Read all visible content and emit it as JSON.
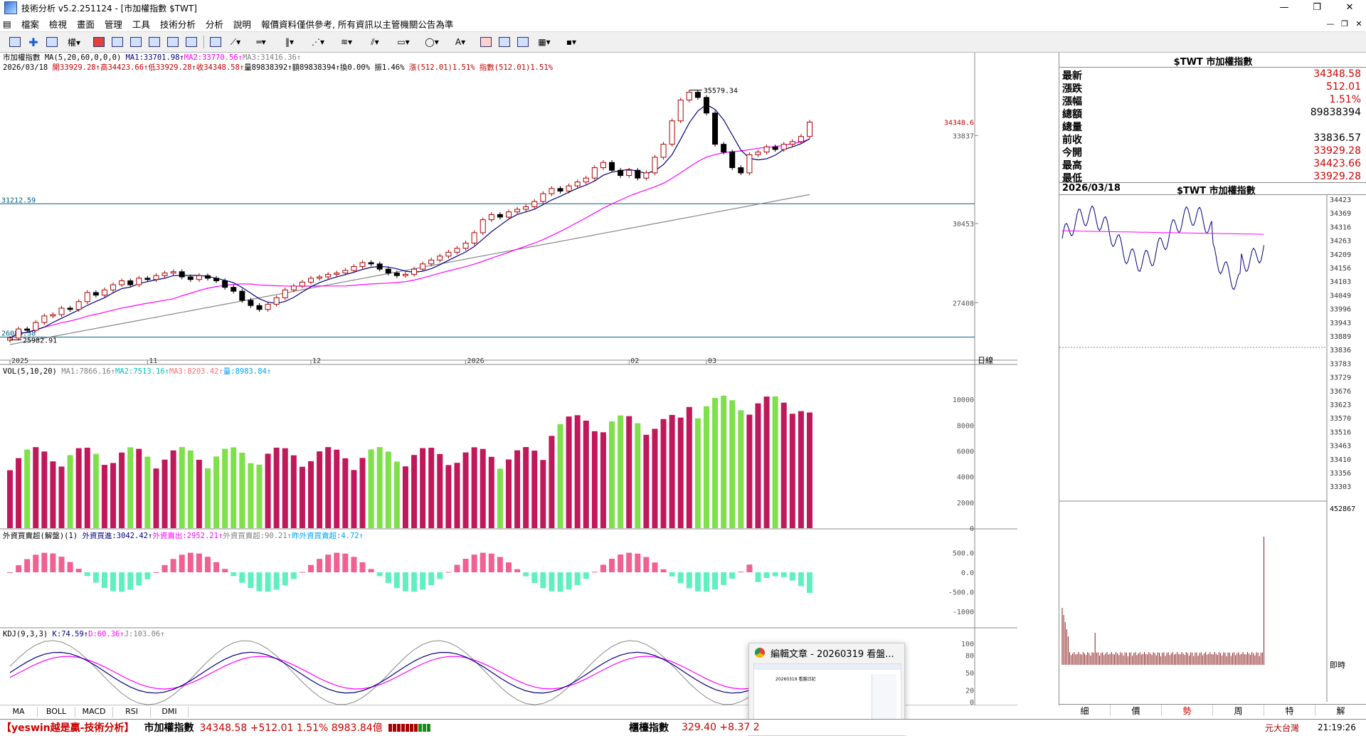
{
  "window": {
    "title": "技術分析 v5.2.251124 - [市加權指數 $TWT]",
    "buttons": [
      "—",
      "❐",
      "✕"
    ]
  },
  "menu": [
    "檔案",
    "檢視",
    "畫面",
    "管理",
    "工具",
    "技術分析",
    "分析",
    "說明",
    "報價資料僅供參考, 所有資訊以主管機關公告為準"
  ],
  "mdi_buttons": [
    "—",
    "❐",
    "✕"
  ],
  "main_chart": {
    "title_line": "市加權指數 MA(5,20,60,0,0,0) MA1:33701.98↑MA2:33770.56↑MA3:31416.36↑",
    "title_parts": [
      {
        "text": "市加權指數 MA(5,20,60,0,0,0) ",
        "color": "#000000"
      },
      {
        "text": "MA1:33701.98↑",
        "color": "#000080"
      },
      {
        "text": "MA2:33770.56↑",
        "color": "#ff00ff"
      },
      {
        "text": "MA3:31416.36↑",
        "color": "#808080"
      }
    ],
    "info_line_parts": [
      {
        "text": "2026/03/18 ",
        "color": "#000000"
      },
      {
        "text": "開33929.28↑高34423.66↑低33929.28↑收34348.58↑",
        "color": "#c00000"
      },
      {
        "text": "量89838392↑額89838394↑換0.00%  振1.46% ",
        "color": "#000000"
      },
      {
        "text": "漲(512.01)1.51% 指數(512.01)1.51%",
        "color": "#c00000"
      }
    ],
    "hlines": [
      {
        "label": "31212.59",
        "value": 31212.59
      },
      {
        "label": "26084.38",
        "value": 26084.38
      }
    ],
    "y_ticks": [
      "33837",
      "30453",
      "27408"
    ],
    "last_price_label": "34348.6",
    "peak_label": "35579.34",
    "low_label": "25982.91",
    "x_labels": [
      "2025",
      "11",
      "12",
      "2026",
      "02",
      "03"
    ],
    "x_axis_unit": "日線"
  },
  "volume_chart": {
    "title_parts": [
      {
        "text": "VOL(5,10,20) ",
        "color": "#000000"
      },
      {
        "text": "MA1:7866.16↑",
        "color": "#808080"
      },
      {
        "text": "MA2:7513.16↑",
        "color": "#00c0c0"
      },
      {
        "text": "MA3:8203.42↑",
        "color": "#ff7070"
      },
      {
        "text": "量:8983.84↑",
        "color": "#00a0ff"
      }
    ],
    "y_ticks": [
      "10000",
      "8000",
      "6000",
      "4000",
      "2000",
      "0"
    ]
  },
  "foreign_chart": {
    "title_parts": [
      {
        "text": "外資買賣超(解盤)(1) ",
        "color": "#000000"
      },
      {
        "text": "外資買進:3042.42↑",
        "color": "#000080"
      },
      {
        "text": "外資賣出:2952.21↑",
        "color": "#ff00ff"
      },
      {
        "text": "外資買賣超:90.21↑",
        "color": "#808080"
      },
      {
        "text": "昨外資買賣超:4.72↑",
        "color": "#00a0ff"
      }
    ],
    "y_ticks": [
      "500.0",
      "0.0",
      "-500.0",
      "-1000"
    ]
  },
  "kdj_chart": {
    "title_parts": [
      {
        "text": "KDJ(9,3,3) ",
        "color": "#000000"
      },
      {
        "text": "K:74.59↑",
        "color": "#000080"
      },
      {
        "text": "D:60.36↑",
        "color": "#ff00ff"
      },
      {
        "text": "J:103.06↑",
        "color": "#808080"
      }
    ],
    "y_ticks": [
      "100",
      "80",
      "50",
      "20",
      "0"
    ]
  },
  "bottom_tabs": [
    "MA",
    "BOLL",
    "MACD",
    "RSI",
    "DMI"
  ],
  "quote_panel": {
    "header": "$TWT 市加權指數",
    "rows": [
      {
        "label": "最新",
        "value": "34348.58",
        "red": true
      },
      {
        "label": "漲跌",
        "value": "512.01",
        "red": true
      },
      {
        "label": "漲幅",
        "value": "1.51%",
        "red": true
      },
      {
        "label": "總額",
        "value": "89838394",
        "red": false
      },
      {
        "label": "總量",
        "value": "",
        "red": false
      },
      {
        "label": "前收",
        "value": "33836.57",
        "red": false
      },
      {
        "label": "今開",
        "value": "33929.28",
        "red": true
      },
      {
        "label": "最高",
        "value": "34423.66",
        "red": true
      },
      {
        "label": "最低",
        "value": "33929.28",
        "red": true
      }
    ],
    "sub_date": "2026/03/18",
    "sub_symbol": "$TWT 市加權指數",
    "intraday_ticks": [
      "34423",
      "34369",
      "34316",
      "34263",
      "34209",
      "34156",
      "34103",
      "34049",
      "33996",
      "33943",
      "33889",
      "33836",
      "33783",
      "33729",
      "33676",
      "33623",
      "33570",
      "33516",
      "33463",
      "33410",
      "33356",
      "33303"
    ],
    "intraday_vol_label": "452867",
    "intraday_label": "即時",
    "tabs": [
      "細",
      "價",
      "勢",
      "周",
      "特",
      "解"
    ],
    "active_tab": "勢"
  },
  "popup": {
    "title": "編輯文章 - 20260319 看盤...",
    "thumb_text": "20260319 看盤日記"
  },
  "status": {
    "brand": "【yeswin越是贏-技術分析】",
    "index_name": "市加權指數",
    "index_value": "34348.58 +512.01 1.51% 8983.84億",
    "otc_name": "櫃檯指數",
    "otc_value": "329.40 +8.37 2",
    "right_text": "元大台灣",
    "time": "21:19:26"
  },
  "colors": {
    "up": "#b00000",
    "down": "#000000",
    "vol_up": "#c0185a",
    "vol_down": "#7ee04a",
    "buy": "#f06090",
    "sell": "#60f0c0"
  }
}
